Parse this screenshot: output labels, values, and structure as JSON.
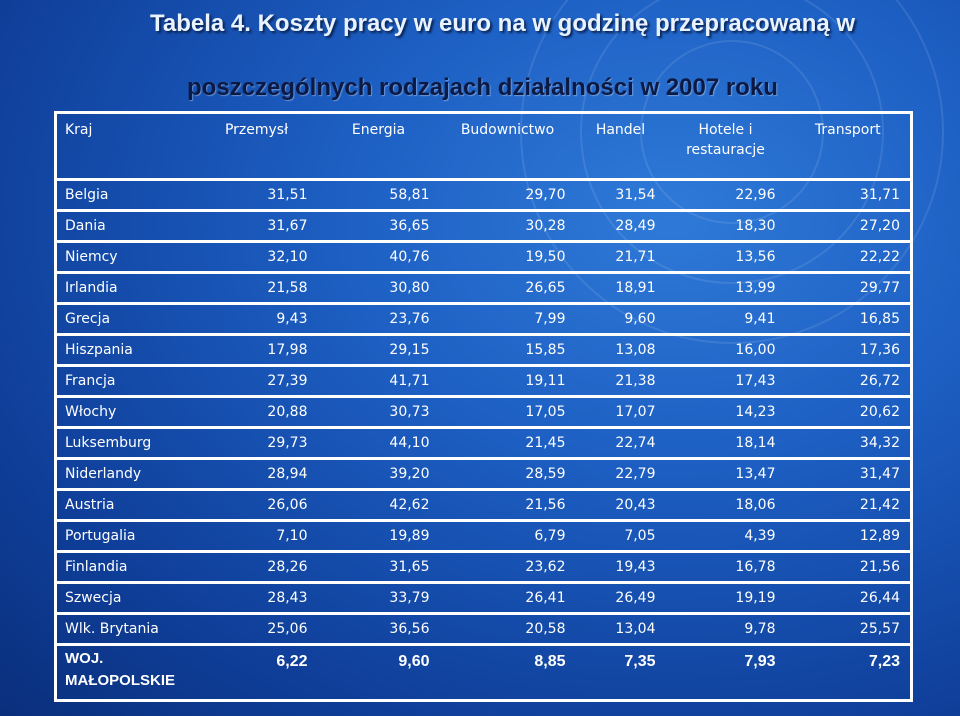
{
  "title": {
    "line1": "Tabela 4. Koszty pracy w euro na w godzinę przepracowaną w",
    "line2": "poszczególnych rodzajach działalności w 2007 roku"
  },
  "colors": {
    "background": "#1d5fc3",
    "title_light": "#e9f2ff",
    "title_dark": "#0b1a44",
    "text": "#ffffff"
  },
  "table": {
    "headers": {
      "kraj": "Kraj",
      "przemysl": "Przemysł",
      "energia": "Energia",
      "budownictwo": "Budownictwo",
      "handel": "Handel",
      "hotele": "Hotele i restauracje",
      "transport": "Transport"
    },
    "rows": [
      {
        "country": "Belgia",
        "values": [
          "31,51",
          "58,81",
          "29,70",
          "31,54",
          "22,96",
          "31,71"
        ]
      },
      {
        "country": "Dania",
        "values": [
          "31,67",
          "36,65",
          "30,28",
          "28,49",
          "18,30",
          "27,20"
        ]
      },
      {
        "country": "Niemcy",
        "values": [
          "32,10",
          "40,76",
          "19,50",
          "21,71",
          "13,56",
          "22,22"
        ]
      },
      {
        "country": "Irlandia",
        "values": [
          "21,58",
          "30,80",
          "26,65",
          "18,91",
          "13,99",
          "29,77"
        ]
      },
      {
        "country": "Grecja",
        "values": [
          "9,43",
          "23,76",
          "7,99",
          "9,60",
          "9,41",
          "16,85"
        ]
      },
      {
        "country": "Hiszpania",
        "values": [
          "17,98",
          "29,15",
          "15,85",
          "13,08",
          "16,00",
          "17,36"
        ]
      },
      {
        "country": "Francja",
        "values": [
          "27,39",
          "41,71",
          "19,11",
          "21,38",
          "17,43",
          "26,72"
        ]
      },
      {
        "country": "Włochy",
        "values": [
          "20,88",
          "30,73",
          "17,05",
          "17,07",
          "14,23",
          "20,62"
        ]
      },
      {
        "country": "Luksemburg",
        "values": [
          "29,73",
          "44,10",
          "21,45",
          "22,74",
          "18,14",
          "34,32"
        ]
      },
      {
        "country": "Niderlandy",
        "values": [
          "28,94",
          "39,20",
          "28,59",
          "22,79",
          "13,47",
          "31,47"
        ]
      },
      {
        "country": "Austria",
        "values": [
          "26,06",
          "42,62",
          "21,56",
          "20,43",
          "18,06",
          "21,42"
        ]
      },
      {
        "country": "Portugalia",
        "values": [
          "7,10",
          "19,89",
          "6,79",
          "7,05",
          "4,39",
          "12,89"
        ]
      },
      {
        "country": "Finlandia",
        "values": [
          "28,26",
          "31,65",
          "23,62",
          "19,43",
          "16,78",
          "21,56"
        ]
      },
      {
        "country": "Szwecja",
        "values": [
          "28,43",
          "33,79",
          "26,41",
          "26,49",
          "19,19",
          "26,44"
        ]
      },
      {
        "country": "Wlk. Brytania",
        "values": [
          "25,06",
          "36,56",
          "20,58",
          "13,04",
          "9,78",
          "25,57"
        ]
      }
    ],
    "total": {
      "country": "WOJ. MAŁOPOLSKIE",
      "values": [
        "6,22",
        "9,60",
        "8,85",
        "7,35",
        "7,93",
        "7,23"
      ]
    }
  }
}
